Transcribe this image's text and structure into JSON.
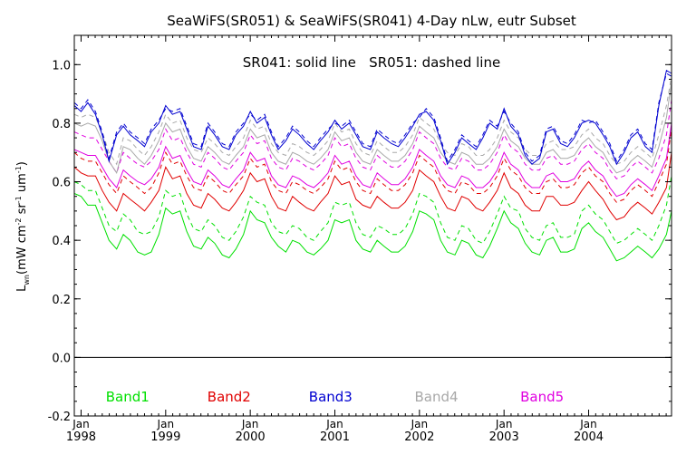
{
  "chart_data": {
    "type": "line",
    "title": "SeaWiFS(SR051) & SeaWiFS(SR041) 4-Day nLw, eutr Subset",
    "annotation": "SR041: solid line   SR051: dashed line",
    "ylabel_main": "L",
    "ylabel_sub": "wn",
    "ylabel_units": [
      "(mW cm",
      "-2",
      " sr",
      "-1",
      " um",
      "-1",
      ")"
    ],
    "xlim": [
      1997.92,
      2004.98
    ],
    "ylim": [
      -0.2,
      1.1
    ],
    "yticks": [
      {
        "v": -0.2,
        "label": "-0.2"
      },
      {
        "v": 0.0,
        "label": "0.0"
      },
      {
        "v": 0.2,
        "label": "0.2"
      },
      {
        "v": 0.4,
        "label": "0.4"
      },
      {
        "v": 0.6,
        "label": "0.6"
      },
      {
        "v": 0.8,
        "label": "0.8"
      },
      {
        "v": 1.0,
        "label": "1.0"
      }
    ],
    "xticks": [
      {
        "v": 1998.0,
        "month": "Jan",
        "year": "1998"
      },
      {
        "v": 1999.0,
        "month": "Jan",
        "year": "1999"
      },
      {
        "v": 2000.0,
        "month": "Jan",
        "year": "2000"
      },
      {
        "v": 2001.0,
        "month": "Jan",
        "year": "2001"
      },
      {
        "v": 2002.0,
        "month": "Jan",
        "year": "2002"
      },
      {
        "v": 2003.0,
        "month": "Jan",
        "year": "2003"
      },
      {
        "v": 2004.0,
        "month": "Jan",
        "year": "2004"
      }
    ],
    "zero_line": 0.0,
    "x": [
      1997.92,
      1998.0,
      1998.08,
      1998.17,
      1998.25,
      1998.33,
      1998.42,
      1998.5,
      1998.58,
      1998.67,
      1998.75,
      1998.83,
      1998.92,
      1999.0,
      1999.08,
      1999.17,
      1999.25,
      1999.33,
      1999.42,
      1999.5,
      1999.58,
      1999.67,
      1999.75,
      1999.83,
      1999.92,
      2000.0,
      2000.08,
      2000.17,
      2000.25,
      2000.33,
      2000.42,
      2000.5,
      2000.58,
      2000.67,
      2000.75,
      2000.83,
      2000.92,
      2001.0,
      2001.08,
      2001.17,
      2001.25,
      2001.33,
      2001.42,
      2001.5,
      2001.58,
      2001.67,
      2001.75,
      2001.83,
      2001.92,
      2002.0,
      2002.08,
      2002.17,
      2002.25,
      2002.33,
      2002.42,
      2002.5,
      2002.58,
      2002.67,
      2002.75,
      2002.83,
      2002.92,
      2003.0,
      2003.08,
      2003.17,
      2003.25,
      2003.33,
      2003.42,
      2003.5,
      2003.58,
      2003.67,
      2003.75,
      2003.83,
      2003.92,
      2004.0,
      2004.08,
      2004.17,
      2004.25,
      2004.33,
      2004.42,
      2004.5,
      2004.58,
      2004.67,
      2004.75,
      2004.83,
      2004.92,
      2004.98
    ],
    "series": [
      {
        "name": "Band1",
        "color": "#00e000",
        "dash": false,
        "values": [
          0.56,
          0.55,
          0.52,
          0.52,
          0.46,
          0.4,
          0.37,
          0.42,
          0.4,
          0.36,
          0.35,
          0.36,
          0.42,
          0.51,
          0.49,
          0.5,
          0.43,
          0.38,
          0.37,
          0.41,
          0.39,
          0.35,
          0.34,
          0.37,
          0.42,
          0.5,
          0.47,
          0.46,
          0.41,
          0.38,
          0.36,
          0.4,
          0.39,
          0.36,
          0.35,
          0.37,
          0.4,
          0.47,
          0.46,
          0.47,
          0.4,
          0.37,
          0.36,
          0.4,
          0.38,
          0.36,
          0.36,
          0.38,
          0.43,
          0.5,
          0.49,
          0.47,
          0.4,
          0.36,
          0.35,
          0.4,
          0.39,
          0.35,
          0.34,
          0.38,
          0.44,
          0.5,
          0.46,
          0.44,
          0.39,
          0.36,
          0.35,
          0.4,
          0.41,
          0.36,
          0.36,
          0.37,
          0.44,
          0.46,
          0.43,
          0.41,
          0.37,
          0.33,
          0.34,
          0.36,
          0.38,
          0.36,
          0.34,
          0.37,
          0.42,
          0.5
        ]
      },
      {
        "name": "Band1 SR051",
        "color": "#00e000",
        "dash": true,
        "values": [
          0.6,
          0.59,
          0.57,
          0.57,
          0.51,
          0.45,
          0.43,
          0.49,
          0.47,
          0.43,
          0.42,
          0.43,
          0.48,
          0.57,
          0.55,
          0.56,
          0.49,
          0.44,
          0.43,
          0.47,
          0.45,
          0.41,
          0.4,
          0.43,
          0.48,
          0.55,
          0.53,
          0.52,
          0.46,
          0.43,
          0.42,
          0.45,
          0.44,
          0.41,
          0.4,
          0.43,
          0.46,
          0.53,
          0.52,
          0.53,
          0.46,
          0.42,
          0.41,
          0.45,
          0.44,
          0.42,
          0.42,
          0.44,
          0.49,
          0.56,
          0.55,
          0.53,
          0.46,
          0.41,
          0.4,
          0.45,
          0.44,
          0.4,
          0.39,
          0.43,
          0.49,
          0.55,
          0.51,
          0.5,
          0.44,
          0.41,
          0.4,
          0.45,
          0.46,
          0.41,
          0.41,
          0.42,
          0.5,
          0.52,
          0.49,
          0.47,
          0.43,
          0.39,
          0.4,
          0.42,
          0.44,
          0.42,
          0.4,
          0.45,
          0.52,
          0.62
        ]
      },
      {
        "name": "Band2",
        "color": "#e00000",
        "dash": false,
        "values": [
          0.65,
          0.63,
          0.62,
          0.62,
          0.57,
          0.53,
          0.5,
          0.56,
          0.54,
          0.52,
          0.5,
          0.53,
          0.57,
          0.65,
          0.61,
          0.62,
          0.56,
          0.52,
          0.51,
          0.56,
          0.54,
          0.51,
          0.5,
          0.53,
          0.57,
          0.63,
          0.6,
          0.61,
          0.55,
          0.51,
          0.5,
          0.55,
          0.53,
          0.51,
          0.5,
          0.53,
          0.56,
          0.62,
          0.59,
          0.6,
          0.54,
          0.52,
          0.51,
          0.55,
          0.53,
          0.51,
          0.51,
          0.53,
          0.57,
          0.64,
          0.62,
          0.6,
          0.55,
          0.51,
          0.5,
          0.55,
          0.54,
          0.51,
          0.5,
          0.53,
          0.57,
          0.63,
          0.58,
          0.56,
          0.52,
          0.5,
          0.5,
          0.55,
          0.55,
          0.52,
          0.52,
          0.53,
          0.57,
          0.6,
          0.57,
          0.54,
          0.5,
          0.47,
          0.48,
          0.51,
          0.53,
          0.51,
          0.49,
          0.53,
          0.58,
          0.7
        ]
      },
      {
        "name": "Band2 SR051",
        "color": "#e00000",
        "dash": true,
        "values": [
          0.7,
          0.68,
          0.67,
          0.67,
          0.63,
          0.59,
          0.56,
          0.62,
          0.6,
          0.58,
          0.56,
          0.58,
          0.63,
          0.7,
          0.66,
          0.67,
          0.62,
          0.58,
          0.57,
          0.62,
          0.6,
          0.57,
          0.56,
          0.59,
          0.62,
          0.68,
          0.65,
          0.66,
          0.6,
          0.57,
          0.56,
          0.6,
          0.59,
          0.57,
          0.56,
          0.58,
          0.61,
          0.67,
          0.64,
          0.65,
          0.6,
          0.57,
          0.56,
          0.61,
          0.59,
          0.57,
          0.57,
          0.59,
          0.63,
          0.69,
          0.67,
          0.65,
          0.6,
          0.57,
          0.56,
          0.6,
          0.59,
          0.56,
          0.56,
          0.58,
          0.62,
          0.68,
          0.64,
          0.62,
          0.58,
          0.56,
          0.56,
          0.6,
          0.61,
          0.58,
          0.58,
          0.59,
          0.63,
          0.65,
          0.62,
          0.6,
          0.56,
          0.53,
          0.54,
          0.57,
          0.59,
          0.57,
          0.55,
          0.6,
          0.66,
          0.78
        ]
      },
      {
        "name": "Band5",
        "color": "#e000e0",
        "dash": false,
        "values": [
          0.71,
          0.7,
          0.69,
          0.69,
          0.65,
          0.61,
          0.58,
          0.64,
          0.62,
          0.6,
          0.59,
          0.61,
          0.65,
          0.72,
          0.68,
          0.69,
          0.64,
          0.6,
          0.59,
          0.64,
          0.62,
          0.59,
          0.58,
          0.61,
          0.64,
          0.7,
          0.67,
          0.68,
          0.62,
          0.59,
          0.58,
          0.62,
          0.61,
          0.59,
          0.58,
          0.6,
          0.63,
          0.69,
          0.66,
          0.67,
          0.62,
          0.59,
          0.58,
          0.63,
          0.61,
          0.59,
          0.59,
          0.61,
          0.65,
          0.71,
          0.69,
          0.67,
          0.62,
          0.59,
          0.58,
          0.62,
          0.61,
          0.58,
          0.58,
          0.6,
          0.64,
          0.7,
          0.66,
          0.64,
          0.6,
          0.58,
          0.58,
          0.62,
          0.63,
          0.6,
          0.6,
          0.61,
          0.65,
          0.67,
          0.64,
          0.62,
          0.58,
          0.55,
          0.56,
          0.59,
          0.61,
          0.59,
          0.57,
          0.62,
          0.68,
          0.8
        ]
      },
      {
        "name": "Band5 SR051",
        "color": "#e000e0",
        "dash": true,
        "values": [
          0.77,
          0.76,
          0.75,
          0.75,
          0.71,
          0.67,
          0.63,
          0.7,
          0.68,
          0.66,
          0.65,
          0.67,
          0.71,
          0.78,
          0.74,
          0.75,
          0.7,
          0.66,
          0.65,
          0.7,
          0.68,
          0.65,
          0.64,
          0.67,
          0.7,
          0.76,
          0.73,
          0.74,
          0.68,
          0.65,
          0.64,
          0.68,
          0.67,
          0.65,
          0.64,
          0.66,
          0.69,
          0.75,
          0.72,
          0.73,
          0.68,
          0.65,
          0.64,
          0.69,
          0.67,
          0.65,
          0.65,
          0.67,
          0.71,
          0.77,
          0.75,
          0.73,
          0.68,
          0.65,
          0.64,
          0.68,
          0.67,
          0.64,
          0.64,
          0.66,
          0.7,
          0.76,
          0.72,
          0.7,
          0.66,
          0.64,
          0.64,
          0.68,
          0.69,
          0.66,
          0.66,
          0.67,
          0.71,
          0.73,
          0.7,
          0.68,
          0.64,
          0.61,
          0.62,
          0.65,
          0.67,
          0.65,
          0.63,
          0.68,
          0.76,
          0.88
        ]
      },
      {
        "name": "Band4",
        "color": "#a8a8a8",
        "dash": false,
        "values": [
          0.8,
          0.79,
          0.8,
          0.79,
          0.74,
          0.67,
          0.63,
          0.72,
          0.71,
          0.68,
          0.66,
          0.69,
          0.74,
          0.8,
          0.77,
          0.78,
          0.72,
          0.68,
          0.67,
          0.72,
          0.7,
          0.67,
          0.66,
          0.69,
          0.72,
          0.78,
          0.75,
          0.76,
          0.7,
          0.67,
          0.66,
          0.7,
          0.69,
          0.67,
          0.66,
          0.68,
          0.71,
          0.77,
          0.74,
          0.75,
          0.7,
          0.67,
          0.66,
          0.71,
          0.69,
          0.67,
          0.67,
          0.69,
          0.73,
          0.79,
          0.77,
          0.75,
          0.7,
          0.67,
          0.66,
          0.7,
          0.69,
          0.66,
          0.66,
          0.68,
          0.72,
          0.78,
          0.74,
          0.72,
          0.68,
          0.66,
          0.66,
          0.7,
          0.71,
          0.68,
          0.68,
          0.69,
          0.73,
          0.75,
          0.72,
          0.7,
          0.66,
          0.63,
          0.64,
          0.67,
          0.69,
          0.67,
          0.65,
          0.72,
          0.82,
          0.94
        ]
      },
      {
        "name": "Band4 SR051",
        "color": "#a8a8a8",
        "dash": true,
        "values": [
          0.83,
          0.82,
          0.83,
          0.82,
          0.77,
          0.7,
          0.66,
          0.75,
          0.74,
          0.71,
          0.69,
          0.72,
          0.77,
          0.83,
          0.8,
          0.81,
          0.75,
          0.71,
          0.7,
          0.75,
          0.73,
          0.7,
          0.69,
          0.72,
          0.75,
          0.81,
          0.78,
          0.79,
          0.73,
          0.7,
          0.69,
          0.73,
          0.72,
          0.7,
          0.69,
          0.71,
          0.74,
          0.8,
          0.77,
          0.78,
          0.73,
          0.7,
          0.69,
          0.74,
          0.72,
          0.7,
          0.7,
          0.72,
          0.76,
          0.82,
          0.8,
          0.78,
          0.73,
          0.7,
          0.69,
          0.73,
          0.72,
          0.69,
          0.69,
          0.71,
          0.75,
          0.81,
          0.77,
          0.75,
          0.71,
          0.69,
          0.69,
          0.73,
          0.74,
          0.71,
          0.71,
          0.72,
          0.76,
          0.78,
          0.75,
          0.73,
          0.69,
          0.66,
          0.67,
          0.7,
          0.72,
          0.7,
          0.68,
          0.76,
          0.86,
          0.96
        ]
      },
      {
        "name": "Band3",
        "color": "#0000d0",
        "dash": false,
        "values": [
          0.86,
          0.84,
          0.87,
          0.83,
          0.76,
          0.67,
          0.76,
          0.79,
          0.76,
          0.74,
          0.72,
          0.77,
          0.8,
          0.86,
          0.83,
          0.84,
          0.78,
          0.72,
          0.71,
          0.79,
          0.76,
          0.72,
          0.71,
          0.76,
          0.79,
          0.84,
          0.8,
          0.82,
          0.76,
          0.71,
          0.74,
          0.78,
          0.76,
          0.73,
          0.71,
          0.74,
          0.77,
          0.81,
          0.78,
          0.8,
          0.76,
          0.72,
          0.71,
          0.77,
          0.75,
          0.73,
          0.72,
          0.75,
          0.79,
          0.83,
          0.84,
          0.81,
          0.74,
          0.66,
          0.7,
          0.75,
          0.73,
          0.71,
          0.75,
          0.8,
          0.78,
          0.85,
          0.79,
          0.76,
          0.69,
          0.66,
          0.68,
          0.77,
          0.78,
          0.73,
          0.72,
          0.75,
          0.8,
          0.81,
          0.8,
          0.76,
          0.72,
          0.66,
          0.7,
          0.75,
          0.77,
          0.72,
          0.7,
          0.86,
          0.98,
          0.97
        ]
      },
      {
        "name": "Band3 SR051",
        "color": "#0000d0",
        "dash": true,
        "values": [
          0.87,
          0.85,
          0.88,
          0.84,
          0.77,
          0.68,
          0.77,
          0.8,
          0.77,
          0.75,
          0.73,
          0.78,
          0.81,
          0.85,
          0.84,
          0.85,
          0.79,
          0.73,
          0.72,
          0.8,
          0.77,
          0.73,
          0.72,
          0.77,
          0.8,
          0.83,
          0.81,
          0.83,
          0.77,
          0.72,
          0.75,
          0.79,
          0.77,
          0.74,
          0.72,
          0.75,
          0.78,
          0.8,
          0.79,
          0.81,
          0.77,
          0.73,
          0.72,
          0.78,
          0.76,
          0.74,
          0.73,
          0.76,
          0.8,
          0.82,
          0.85,
          0.82,
          0.75,
          0.67,
          0.71,
          0.76,
          0.74,
          0.72,
          0.76,
          0.81,
          0.79,
          0.84,
          0.8,
          0.77,
          0.7,
          0.67,
          0.69,
          0.78,
          0.79,
          0.74,
          0.73,
          0.76,
          0.81,
          0.8,
          0.81,
          0.77,
          0.73,
          0.67,
          0.71,
          0.76,
          0.78,
          0.73,
          0.71,
          0.87,
          0.97,
          0.96
        ]
      }
    ],
    "legend": [
      {
        "label": "Band1",
        "color": "#00e000",
        "x": 1998.55
      },
      {
        "label": "Band2",
        "color": "#e00000",
        "x": 1999.75
      },
      {
        "label": "Band3",
        "color": "#0000d0",
        "x": 2000.95
      },
      {
        "label": "Band4",
        "color": "#a8a8a8",
        "x": 2002.2
      },
      {
        "label": "Band5",
        "color": "#e000e0",
        "x": 2003.45
      }
    ],
    "legend_y": -0.15,
    "legend_placement": "bottom-inside",
    "grid": false
  }
}
